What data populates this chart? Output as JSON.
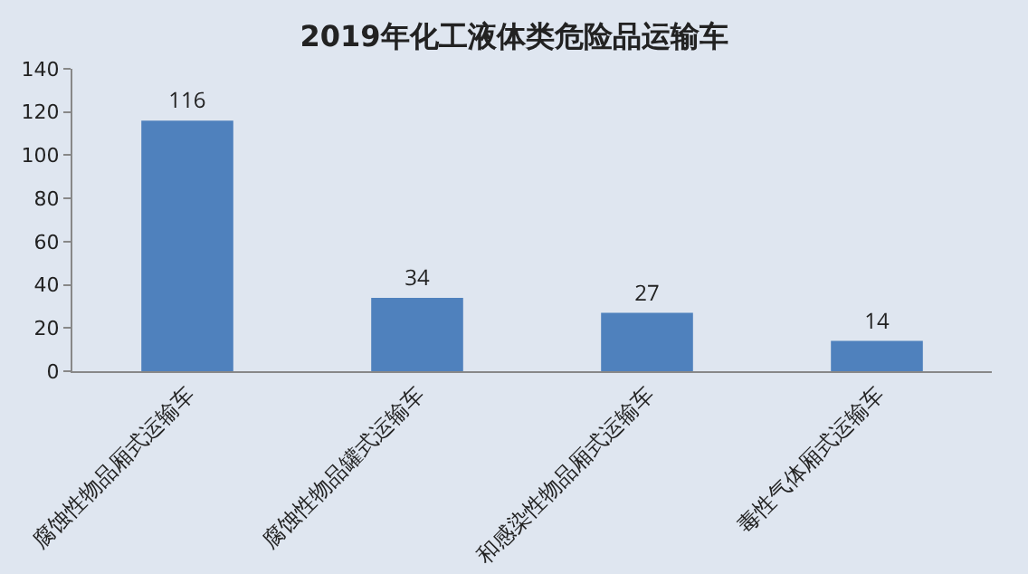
{
  "chart_data": {
    "type": "bar",
    "title": "2019年化工液体类危险品运输车",
    "categories": [
      "腐蚀性物品厢式运输车",
      "腐蚀性物品罐式运输车",
      "和感染性物品厢式运输车",
      "毒性气体厢式运输车"
    ],
    "values": [
      116,
      34,
      27,
      14
    ],
    "color": "#4f81bd",
    "data_labels": true,
    "ylim": [
      0,
      140
    ],
    "yticks": [
      0,
      20,
      40,
      60,
      80,
      100,
      120,
      140
    ],
    "grid": false,
    "legend": false
  }
}
